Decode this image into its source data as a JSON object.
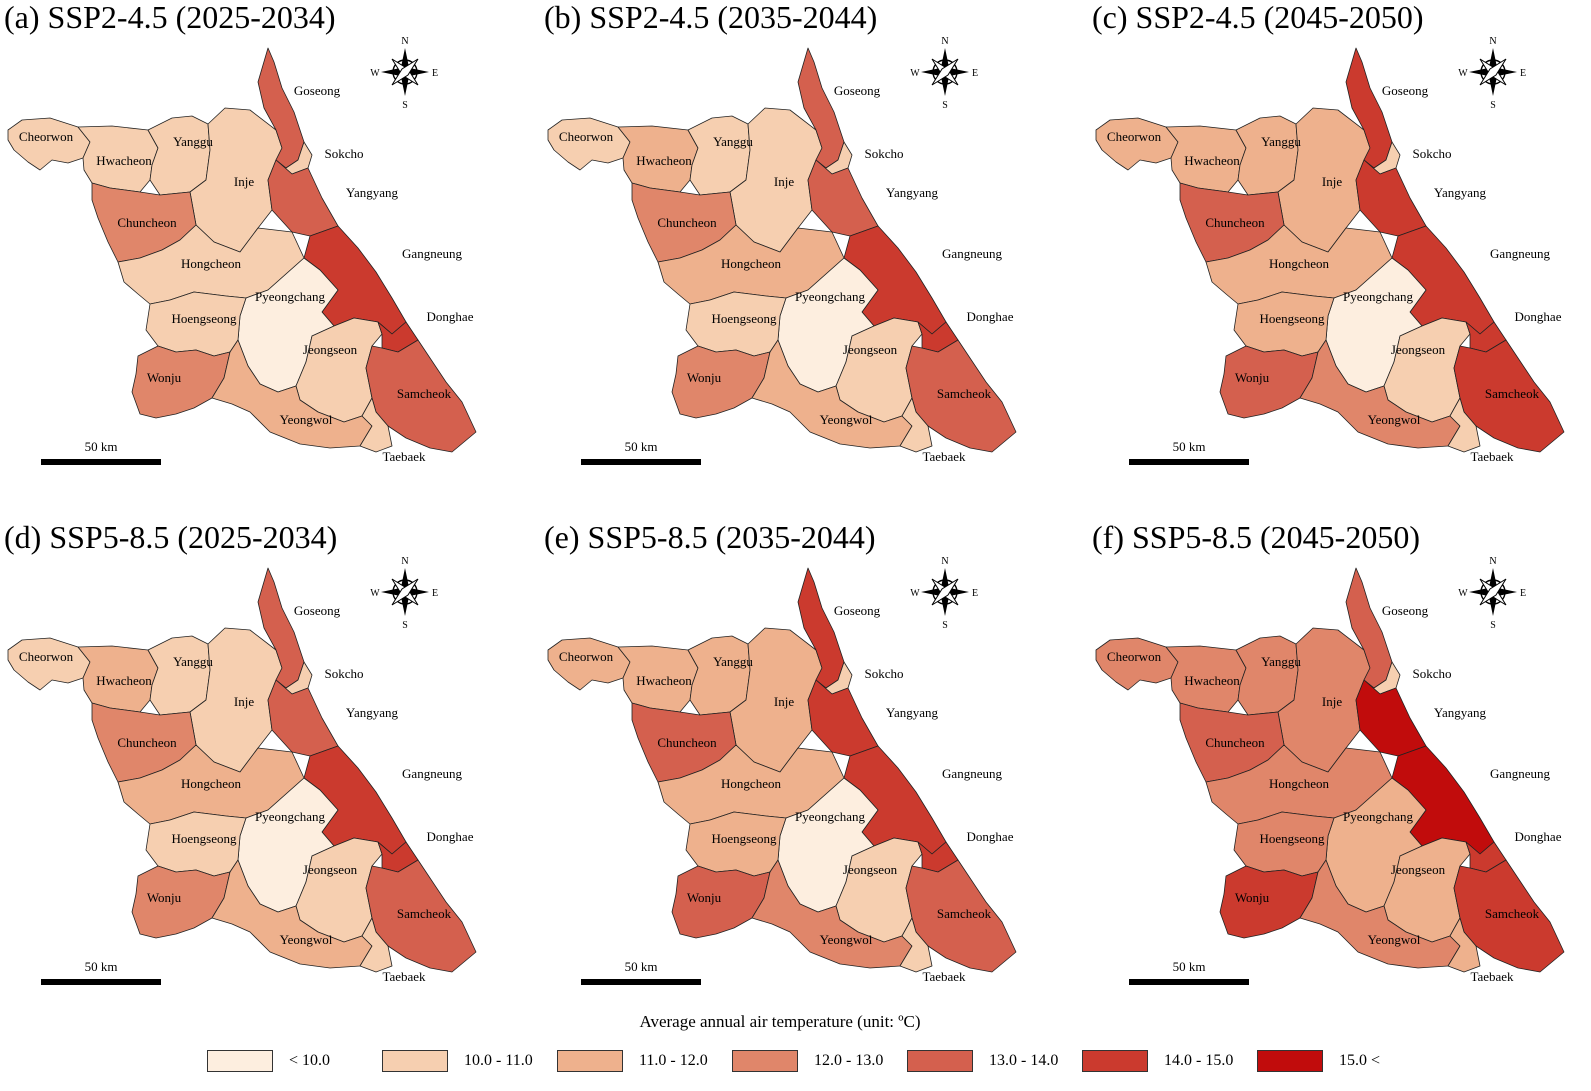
{
  "scale_colors": [
    "#fdeedf",
    "#f6cfb0",
    "#eeb18d",
    "#e0866a",
    "#d4604e",
    "#cb3a2e",
    "#c10c0c"
  ],
  "panels": [
    {
      "title": "(a) SSP2-4.5 (2025-2034)",
      "classes": {
        "Cheorwon": 1,
        "Hwacheon": 1,
        "Yanggu": 1,
        "Inje": 1,
        "Goseong": 4,
        "Sokcho": 1,
        "Yangyang": 4,
        "Chuncheon": 3,
        "Hongcheon": 1,
        "Gangneung": 5,
        "Pyeongchang": 0,
        "Hoengseong": 1,
        "Jeongseon": 1,
        "Donghae": 5,
        "Wonju": 3,
        "Yeongwol": 2,
        "Samcheok": 4,
        "Taebaek": 1
      }
    },
    {
      "title": "(b) SSP2-4.5 (2035-2044)",
      "classes": {
        "Cheorwon": 1,
        "Hwacheon": 2,
        "Yanggu": 1,
        "Inje": 1,
        "Goseong": 4,
        "Sokcho": 1,
        "Yangyang": 4,
        "Chuncheon": 3,
        "Hongcheon": 2,
        "Gangneung": 5,
        "Pyeongchang": 0,
        "Hoengseong": 1,
        "Jeongseon": 1,
        "Donghae": 5,
        "Wonju": 3,
        "Yeongwol": 2,
        "Samcheok": 4,
        "Taebaek": 1
      }
    },
    {
      "title": "(c) SSP2-4.5 (2045-2050)",
      "classes": {
        "Cheorwon": 2,
        "Hwacheon": 2,
        "Yanggu": 2,
        "Inje": 2,
        "Goseong": 5,
        "Sokcho": 1,
        "Yangyang": 5,
        "Chuncheon": 4,
        "Hongcheon": 2,
        "Gangneung": 5,
        "Pyeongchang": 0,
        "Hoengseong": 2,
        "Jeongseon": 1,
        "Donghae": 5,
        "Wonju": 4,
        "Yeongwol": 3,
        "Samcheok": 5,
        "Taebaek": 1
      }
    },
    {
      "title": "(d) SSP5-8.5 (2025-2034)",
      "classes": {
        "Cheorwon": 1,
        "Hwacheon": 2,
        "Yanggu": 1,
        "Inje": 1,
        "Goseong": 4,
        "Sokcho": 1,
        "Yangyang": 4,
        "Chuncheon": 3,
        "Hongcheon": 2,
        "Gangneung": 5,
        "Pyeongchang": 0,
        "Hoengseong": 1,
        "Jeongseon": 1,
        "Donghae": 5,
        "Wonju": 3,
        "Yeongwol": 2,
        "Samcheok": 4,
        "Taebaek": 1
      }
    },
    {
      "title": "(e) SSP5-8.5 (2035-2044)",
      "classes": {
        "Cheorwon": 2,
        "Hwacheon": 2,
        "Yanggu": 2,
        "Inje": 2,
        "Goseong": 5,
        "Sokcho": 1,
        "Yangyang": 5,
        "Chuncheon": 4,
        "Hongcheon": 2,
        "Gangneung": 5,
        "Pyeongchang": 0,
        "Hoengseong": 2,
        "Jeongseon": 1,
        "Donghae": 5,
        "Wonju": 4,
        "Yeongwol": 3,
        "Samcheok": 4,
        "Taebaek": 1
      }
    },
    {
      "title": "(f) SSP5-8.5 (2045-2050)",
      "classes": {
        "Cheorwon": 3,
        "Hwacheon": 3,
        "Yanggu": 3,
        "Inje": 3,
        "Goseong": 4,
        "Sokcho": 1,
        "Yangyang": 6,
        "Chuncheon": 4,
        "Hongcheon": 3,
        "Gangneung": 6,
        "Pyeongchang": 2,
        "Hoengseong": 3,
        "Jeongseon": 2,
        "Donghae": 5,
        "Wonju": 5,
        "Yeongwol": 3,
        "Samcheok": 5,
        "Taebaek": 2
      }
    }
  ],
  "scale_bar_label": "50 km",
  "compass": {
    "n": "N",
    "e": "E",
    "s": "S",
    "w": "W"
  },
  "legend": {
    "title": "Average annual air temperature (unit: ºC)",
    "items": [
      {
        "label": "< 10.0"
      },
      {
        "label": "10.0 - 11.0"
      },
      {
        "label": "11.0 - 12.0"
      },
      {
        "label": "12.0 - 13.0"
      },
      {
        "label": "13.0 - 14.0"
      },
      {
        "label": "14.0 - 15.0"
      },
      {
        "label": "15.0 <"
      }
    ]
  }
}
